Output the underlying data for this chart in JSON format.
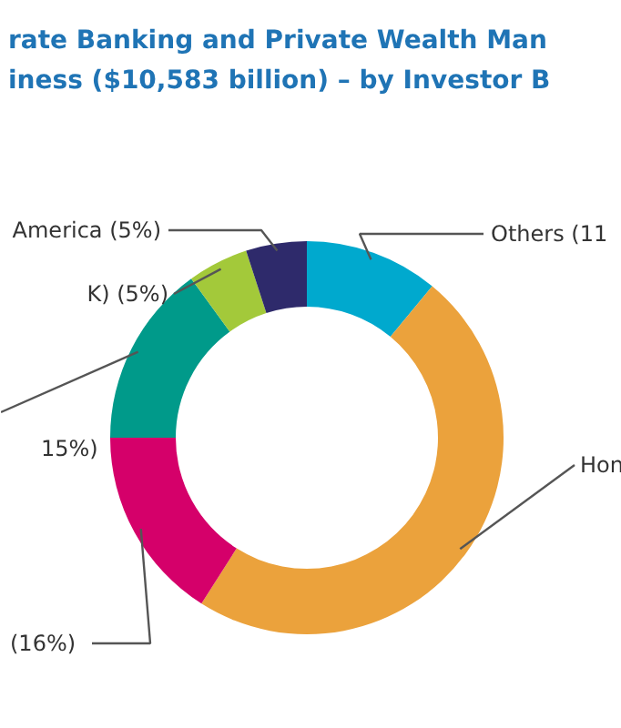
{
  "chart_data": {
    "type": "donut",
    "title": "rate Banking and Private Wealth Man\niness ($10,583 billion) – by Investor B",
    "categories": [
      "Others (11",
      "Hon",
      "(16%)",
      "15%)",
      "K) (5%)",
      "America (5%)"
    ],
    "values": [
      11,
      48,
      16,
      15,
      5,
      5
    ],
    "colors": [
      "#00a9ce",
      "#eba23c",
      "#d5006a",
      "#009a8a",
      "#a3c93a",
      "#2e2a6b"
    ]
  }
}
